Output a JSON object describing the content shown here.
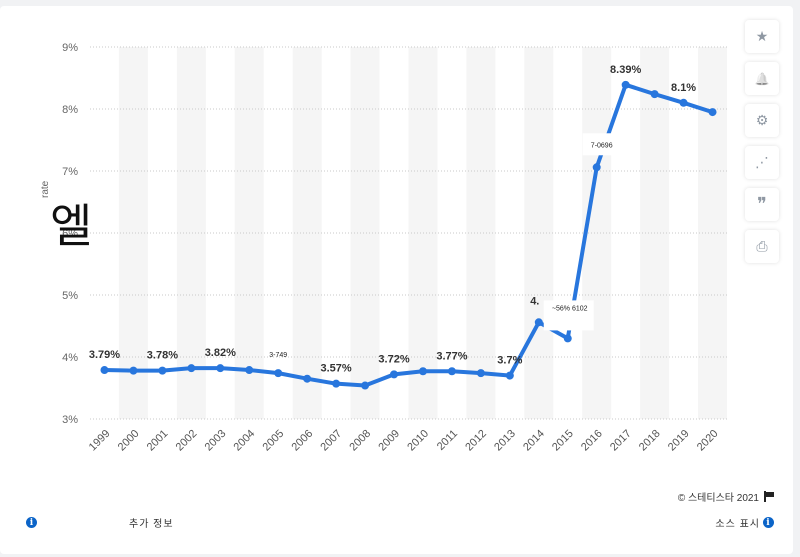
{
  "chart_data": {
    "type": "line",
    "title": "",
    "xlabel": "",
    "ylabel": "rate",
    "categories": [
      "1999",
      "2000",
      "2001",
      "2002",
      "2003",
      "2004",
      "2005",
      "2006",
      "2007",
      "2008",
      "2009",
      "2010",
      "2011",
      "2012",
      "2013",
      "2014",
      "2015",
      "2016",
      "2017",
      "2018",
      "2019",
      "2020"
    ],
    "series": [
      {
        "values": [
          3.79,
          3.78,
          3.78,
          3.82,
          3.82,
          3.79,
          3.74,
          3.65,
          3.57,
          3.54,
          3.72,
          3.77,
          3.77,
          3.74,
          3.7,
          4.56,
          4.3,
          7.06,
          8.39,
          8.24,
          8.1,
          7.95
        ]
      }
    ],
    "ylim": [
      3,
      9
    ],
    "yticks": [
      "3%",
      "4%",
      "5%",
      "6%",
      "7%",
      "8%",
      "9%"
    ],
    "grid": true,
    "line_color": "#2876dd",
    "band_color": "#f5f5f5",
    "labels": [
      {
        "index": 0,
        "text": "3.79%"
      },
      {
        "index": 2,
        "text": "3.78%"
      },
      {
        "index": 4,
        "text": "3.82%"
      },
      {
        "index": 8,
        "text": "3.57%"
      },
      {
        "index": 10,
        "text": "3.72%"
      },
      {
        "index": 12,
        "text": "3.77%"
      },
      {
        "index": 14,
        "text": "3.7%"
      },
      {
        "index": 18,
        "text": "8.39%"
      },
      {
        "index": 20,
        "text": "8.1%"
      }
    ],
    "partial_labels": [
      {
        "index": 6,
        "text": "3-749"
      },
      {
        "index": 15,
        "text": "4."
      },
      {
        "index": 16,
        "text": "~56% 6102"
      },
      {
        "index": 17,
        "text": "7-0696"
      }
    ]
  },
  "overlay": {
    "glyph": "엘"
  },
  "toolbar": [
    {
      "icon": "star-icon",
      "glyph": "★"
    },
    {
      "icon": "bell-icon",
      "glyph": "🔔"
    },
    {
      "icon": "gear-icon",
      "glyph": "⚙"
    },
    {
      "icon": "share-icon",
      "glyph": "⋰"
    },
    {
      "icon": "quote-icon",
      "glyph": "❞"
    },
    {
      "icon": "print-icon",
      "glyph": "⎙"
    }
  ],
  "footer": {
    "more_info": "추가 정보",
    "copyright": "©  스테티스타 2021",
    "source": "소스 표시"
  }
}
